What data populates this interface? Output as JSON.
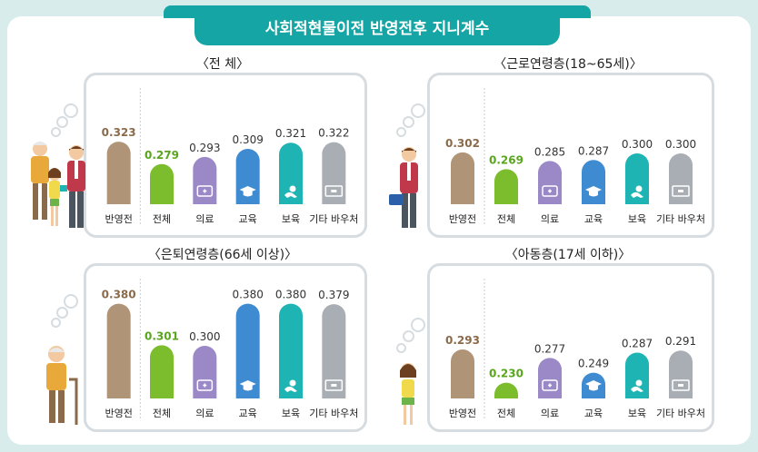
{
  "title": "사회적현물이전 반영전후 지니계수",
  "colors": {
    "pre": "#b09478",
    "total": "#7cbd2e",
    "medical": "#9b89c7",
    "education": "#3f8bd2",
    "childcare": "#1fb4b4",
    "other": "#a9aeb4",
    "pre_label": "#8a6a4a",
    "total_label": "#5aa51e"
  },
  "chart_data": [
    {
      "type": "bar",
      "title": "〈전 체〉",
      "categories": [
        "반영전",
        "전체",
        "의료",
        "교육",
        "보육",
        "기타 바우처"
      ],
      "values": [
        0.323,
        0.279,
        0.293,
        0.309,
        0.321,
        0.322
      ],
      "value_labels": [
        "0.323",
        "0.279",
        "0.293",
        "0.309",
        "0.321",
        "0.322"
      ],
      "ylim": [
        0.2,
        0.4
      ]
    },
    {
      "type": "bar",
      "title": "〈근로연령층(18~65세)〉",
      "categories": [
        "반영전",
        "전체",
        "의료",
        "교육",
        "보육",
        "기타 바우처"
      ],
      "values": [
        0.302,
        0.269,
        0.285,
        0.287,
        0.3,
        0.3
      ],
      "value_labels": [
        "0.302",
        "0.269",
        "0.285",
        "0.287",
        "0.300",
        "0.300"
      ],
      "ylim": [
        0.2,
        0.4
      ]
    },
    {
      "type": "bar",
      "title": "〈은퇴연령층(66세 이상)〉",
      "categories": [
        "반영전",
        "전체",
        "의료",
        "교육",
        "보육",
        "기타 바우처"
      ],
      "values": [
        0.38,
        0.301,
        0.3,
        0.38,
        0.38,
        0.379
      ],
      "value_labels": [
        "0.380",
        "0.301",
        "0.300",
        "0.380",
        "0.380",
        "0.379"
      ],
      "ylim": [
        0.2,
        0.4
      ]
    },
    {
      "type": "bar",
      "title": "〈아동층(17세 이하)〉",
      "categories": [
        "반영전",
        "전체",
        "의료",
        "교육",
        "보육",
        "기타 바우처"
      ],
      "values": [
        0.293,
        0.23,
        0.277,
        0.249,
        0.287,
        0.291
      ],
      "value_labels": [
        "0.293",
        "0.230",
        "0.277",
        "0.249",
        "0.287",
        "0.291"
      ],
      "ylim": [
        0.2,
        0.4
      ]
    }
  ]
}
